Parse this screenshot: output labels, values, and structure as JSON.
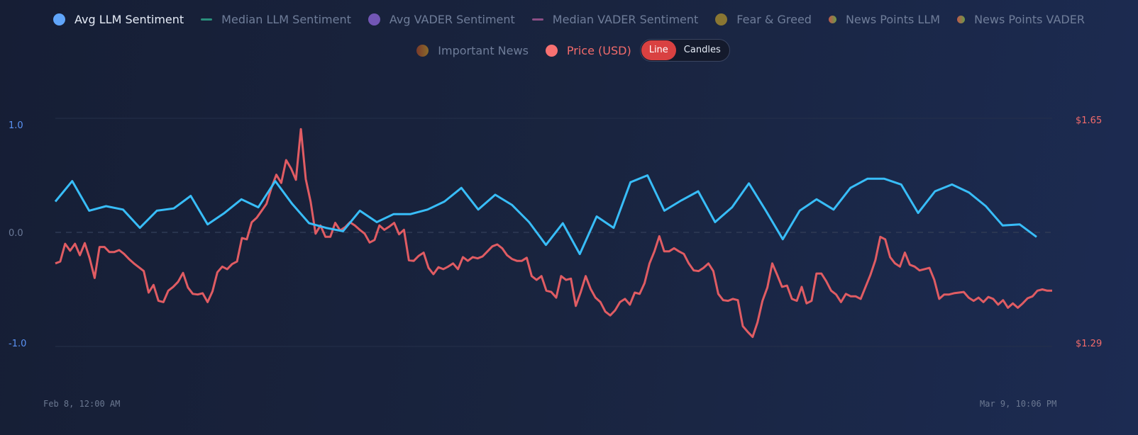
{
  "legend": {
    "items": [
      {
        "label": "Avg LLM Sentiment",
        "color": "#60a5fa",
        "marker": "dot",
        "active": true
      },
      {
        "label": "Median LLM Sentiment",
        "color": "#2a8f7c",
        "marker": "dash",
        "active": false
      },
      {
        "label": "Avg VADER Sentiment",
        "color": "#7256b5",
        "marker": "dot",
        "active": false
      },
      {
        "label": "Median VADER Sentiment",
        "color": "#8c4f86",
        "marker": "dash",
        "active": false
      },
      {
        "label": "Fear & Greed",
        "color": "#8a7632",
        "marker": "dot",
        "active": false
      },
      {
        "label": "News Points LLM",
        "color": "#a9703f",
        "marker": "gradient-dot",
        "active": false
      },
      {
        "label": "News Points VADER",
        "color": "#a9703f",
        "marker": "gradient-dot",
        "active": false
      },
      {
        "label": "Important News",
        "color": "#8b4a2a",
        "marker": "gradient-dot",
        "active": false
      },
      {
        "label": "Price (USD)",
        "color": "#f87171",
        "marker": "dot",
        "active": true
      }
    ],
    "toggle": {
      "options": [
        "Line",
        "Candles"
      ],
      "selected": "Line",
      "active_color": "#d94141"
    }
  },
  "chart_data": {
    "type": "line",
    "grid": true,
    "legend_position": "top",
    "x_ticks": [
      "Feb 8, 12:00 AM",
      "Mar 9, 10:06 PM"
    ],
    "y_left": {
      "ticks": [
        "1.0",
        "0.0",
        "-1.0"
      ],
      "range": [
        -1.0,
        1.0
      ],
      "color": "#5b93f5"
    },
    "y_right": {
      "ticks": [
        "$1.65",
        "$1.29"
      ],
      "range": [
        1.29,
        1.65
      ],
      "color": "#f26b6b"
    },
    "series": [
      {
        "name": "Avg LLM Sentiment",
        "axis": "left",
        "color": "#38bdf8",
        "values": [
          0.27,
          0.45,
          0.19,
          0.23,
          0.2,
          0.04,
          0.19,
          0.21,
          0.32,
          0.07,
          0.17,
          0.29,
          0.22,
          0.45,
          0.25,
          0.08,
          0.04,
          0.01,
          0.19,
          0.09,
          0.16,
          0.16,
          0.2,
          0.27,
          0.39,
          0.2,
          0.33,
          0.24,
          0.09,
          -0.11,
          0.08,
          -0.19,
          0.14,
          0.04,
          0.44,
          0.5,
          0.19,
          0.28,
          0.36,
          0.09,
          0.22,
          0.43,
          0.19,
          -0.06,
          0.19,
          0.29,
          0.2,
          0.39,
          0.47,
          0.47,
          0.42,
          0.17,
          0.36,
          0.42,
          0.35,
          0.23,
          0.06,
          0.07,
          -0.04
        ]
      },
      {
        "name": "Price (USD)",
        "axis": "right",
        "color": "#e05c63",
        "values": [
          1.421,
          1.424,
          1.452,
          1.441,
          1.452,
          1.434,
          1.453,
          1.429,
          1.398,
          1.447,
          1.447,
          1.439,
          1.439,
          1.442,
          1.436,
          1.428,
          1.421,
          1.415,
          1.409,
          1.375,
          1.387,
          1.362,
          1.36,
          1.378,
          1.384,
          1.392,
          1.406,
          1.383,
          1.373,
          1.372,
          1.374,
          1.36,
          1.377,
          1.407,
          1.416,
          1.412,
          1.42,
          1.424,
          1.461,
          1.459,
          1.486,
          1.493,
          1.504,
          1.515,
          1.54,
          1.561,
          1.548,
          1.584,
          1.571,
          1.553,
          1.633,
          1.554,
          1.518,
          1.468,
          1.481,
          1.463,
          1.463,
          1.485,
          1.473,
          1.478,
          1.486,
          1.481,
          1.474,
          1.468,
          1.454,
          1.458,
          1.481,
          1.474,
          1.479,
          1.485,
          1.467,
          1.474,
          1.426,
          1.425,
          1.433,
          1.438,
          1.414,
          1.404,
          1.415,
          1.412,
          1.416,
          1.421,
          1.412,
          1.431,
          1.425,
          1.431,
          1.429,
          1.432,
          1.44,
          1.448,
          1.451,
          1.445,
          1.434,
          1.428,
          1.425,
          1.425,
          1.43,
          1.401,
          1.395,
          1.401,
          1.378,
          1.376,
          1.367,
          1.401,
          1.395,
          1.397,
          1.354,
          1.376,
          1.401,
          1.381,
          1.367,
          1.36,
          1.345,
          1.339,
          1.347,
          1.36,
          1.365,
          1.356,
          1.375,
          1.373,
          1.39,
          1.421,
          1.44,
          1.464,
          1.44,
          1.44,
          1.445,
          1.44,
          1.436,
          1.421,
          1.41,
          1.409,
          1.414,
          1.421,
          1.409,
          1.373,
          1.363,
          1.362,
          1.365,
          1.363,
          1.322,
          1.313,
          1.305,
          1.328,
          1.362,
          1.383,
          1.421,
          1.403,
          1.384,
          1.386,
          1.365,
          1.362,
          1.384,
          1.358,
          1.362,
          1.405,
          1.405,
          1.393,
          1.378,
          1.372,
          1.36,
          1.373,
          1.369,
          1.369,
          1.365,
          1.384,
          1.403,
          1.426,
          1.463,
          1.459,
          1.431,
          1.421,
          1.416,
          1.438,
          1.419,
          1.416,
          1.41,
          1.412,
          1.414,
          1.395,
          1.365,
          1.372,
          1.372,
          1.374,
          1.375,
          1.376,
          1.367,
          1.362,
          1.367,
          1.36,
          1.368,
          1.365,
          1.356,
          1.363,
          1.351,
          1.358,
          1.351,
          1.358,
          1.366,
          1.369,
          1.378,
          1.38,
          1.378,
          1.378
        ]
      }
    ]
  }
}
